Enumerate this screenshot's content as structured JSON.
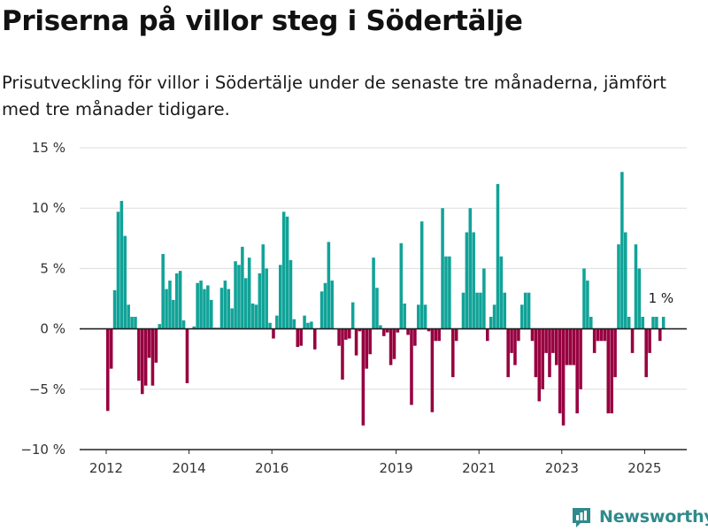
{
  "title": "Priserna på villor steg i Södertälje",
  "subtitle": "Prisutveckling för villor i Södertälje under de senaste tre månaderna, jämfört med tre månader tidigare.",
  "brand": {
    "name": "Newsworthy",
    "icon": "bar-chart-logo-icon"
  },
  "colors": {
    "positive": "#11a398",
    "negative": "#97003f",
    "grid": "#dddddd",
    "axis": "#222222",
    "brand": "#2f8a8c"
  },
  "chart_data": {
    "type": "bar",
    "ylim": [
      -10,
      15
    ],
    "y_ticks": [
      15,
      10,
      5,
      0,
      -5,
      -10
    ],
    "y_tick_labels": [
      "15 %",
      "10 %",
      "5 %",
      "0 %",
      "−5 %",
      "−10 %"
    ],
    "x_ticks": [
      2012,
      2014,
      2016,
      2019,
      2021,
      2023,
      2025
    ],
    "x_tick_labels": [
      "2012",
      "2014",
      "2016",
      "2019",
      "2021",
      "2023",
      "2025"
    ],
    "annotation": "1 %",
    "grid": true,
    "x": [
      "2012-01",
      "2012-02",
      "2012-03",
      "2012-04",
      "2012-05",
      "2012-06",
      "2012-07",
      "2012-08",
      "2012-09",
      "2012-10",
      "2012-11",
      "2012-12",
      "2013-01",
      "2013-02",
      "2013-03",
      "2013-04",
      "2013-05",
      "2013-06",
      "2013-07",
      "2013-08",
      "2013-09",
      "2013-10",
      "2013-11",
      "2013-12",
      "2014-01",
      "2014-02",
      "2014-03",
      "2014-04",
      "2014-05",
      "2014-06",
      "2014-07",
      "2014-08",
      "2014-09",
      "2014-10",
      "2014-11",
      "2014-12",
      "2015-01",
      "2015-02",
      "2015-03",
      "2015-04",
      "2015-05",
      "2015-06",
      "2015-07",
      "2015-08",
      "2015-09",
      "2015-10",
      "2015-11",
      "2015-12",
      "2016-01",
      "2016-02",
      "2016-03",
      "2016-04",
      "2016-05",
      "2016-06",
      "2016-07",
      "2016-08",
      "2016-09",
      "2016-10",
      "2016-11",
      "2016-12",
      "2017-01",
      "2017-02",
      "2017-03",
      "2017-04",
      "2017-05",
      "2017-06",
      "2017-07",
      "2017-08",
      "2017-09",
      "2017-10",
      "2017-11",
      "2017-12",
      "2018-01",
      "2018-02",
      "2018-03",
      "2018-04",
      "2018-05",
      "2018-06",
      "2018-07",
      "2018-08",
      "2018-09",
      "2018-10",
      "2018-11",
      "2018-12",
      "2019-01",
      "2019-02",
      "2019-03",
      "2019-04",
      "2019-05",
      "2019-06",
      "2019-07",
      "2019-08",
      "2019-09",
      "2019-10",
      "2019-11",
      "2019-12",
      "2020-01",
      "2020-02",
      "2020-03",
      "2020-04",
      "2020-05",
      "2020-06",
      "2020-07",
      "2020-08",
      "2020-09",
      "2020-10",
      "2020-11",
      "2020-12",
      "2021-01",
      "2021-02",
      "2021-03",
      "2021-04",
      "2021-05",
      "2021-06",
      "2021-07",
      "2021-08",
      "2021-09",
      "2021-10",
      "2021-11",
      "2021-12",
      "2022-01",
      "2022-02",
      "2022-03",
      "2022-04",
      "2022-05",
      "2022-06",
      "2022-07",
      "2022-08",
      "2022-09",
      "2022-10",
      "2022-11",
      "2022-12",
      "2023-01",
      "2023-02",
      "2023-03",
      "2023-04",
      "2023-05",
      "2023-06",
      "2023-07",
      "2023-08",
      "2023-09",
      "2023-10",
      "2023-11",
      "2023-12",
      "2024-01",
      "2024-02",
      "2024-03",
      "2024-04",
      "2024-05",
      "2024-06",
      "2024-07",
      "2024-08",
      "2024-09",
      "2024-10",
      "2024-11",
      "2024-12",
      "2025-01",
      "2025-02",
      "2025-03",
      "2025-04",
      "2025-05",
      "2025-06"
    ],
    "values": [
      -6.8,
      -3.3,
      3.2,
      9.7,
      10.6,
      7.7,
      2.0,
      1.0,
      1.0,
      -4.3,
      -5.4,
      -4.7,
      -2.4,
      -4.7,
      -2.8,
      0.4,
      6.2,
      3.3,
      4.0,
      2.4,
      4.6,
      4.8,
      0.7,
      -4.5,
      0.0,
      0.2,
      3.8,
      4.0,
      3.3,
      3.6,
      2.4,
      0.1,
      0.1,
      3.4,
      4.0,
      3.3,
      1.7,
      5.6,
      5.3,
      6.8,
      4.2,
      5.9,
      2.1,
      2.0,
      4.6,
      7.0,
      5.0,
      0.5,
      -0.8,
      1.1,
      5.3,
      9.7,
      9.3,
      5.7,
      0.8,
      -1.5,
      -1.4,
      1.1,
      0.5,
      0.6,
      -1.7,
      0.0,
      3.1,
      3.8,
      7.2,
      4.0,
      0.0,
      -1.4,
      -4.2,
      -0.9,
      -0.8,
      2.2,
      -2.2,
      -0.2,
      -8.0,
      -3.3,
      -2.1,
      5.9,
      3.4,
      0.3,
      -0.6,
      -0.3,
      -3.0,
      -2.5,
      -0.3,
      7.1,
      2.1,
      -0.5,
      -6.3,
      -1.4,
      2.0,
      8.9,
      2.0,
      -0.2,
      -6.9,
      -1.0,
      -1.0,
      10.0,
      6.0,
      6.0,
      -4.0,
      -1.0,
      0.0,
      3.0,
      8.0,
      10.0,
      8.0,
      3.0,
      3.0,
      5.0,
      -1.0,
      1.0,
      2.0,
      12.0,
      6.0,
      3.0,
      -4.0,
      -2.0,
      -3.0,
      -1.0,
      2.0,
      3.0,
      3.0,
      -1.0,
      -4.0,
      -6.0,
      -5.0,
      -2.0,
      -4.0,
      -2.0,
      -3.0,
      -7.0,
      -8.0,
      -3.0,
      -3.0,
      -3.0,
      -7.0,
      -5.0,
      5.0,
      4.0,
      1.0,
      -2.0,
      -1.0,
      -1.0,
      -1.0,
      -7.0,
      -7.0,
      -4.0,
      7.0,
      13.0,
      8.0,
      1.0,
      -2.0,
      7.0,
      5.0,
      1.0,
      -4.0,
      -2.0,
      1.0,
      1.0,
      -1.0,
      1.0
    ]
  }
}
